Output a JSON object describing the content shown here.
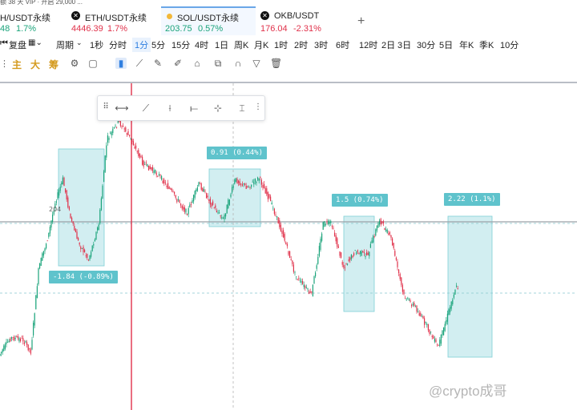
{
  "header": {
    "top_text": "额 38 天 VIP · 开启 29,000 ..."
  },
  "tabs": [
    {
      "name": "H/USDT永续",
      "price": "48",
      "change": "1.7%",
      "color": "#1aa37a",
      "has_close": false,
      "active": false
    },
    {
      "name": "ETH/USDT永续",
      "price": "4446.39",
      "change": "1.7%",
      "color": "#e0314a",
      "has_close": true,
      "active": false
    },
    {
      "name": "SOL/USDT永续",
      "price": "203.75",
      "change": "0.57%",
      "color": "#1aa37a",
      "has_close": false,
      "active": true
    },
    {
      "name": "OKB/USDT",
      "price": "176.04",
      "change": "-2.31%",
      "color": "#e0314a",
      "has_close": true,
      "active": false
    }
  ],
  "add_tab_label": "+",
  "toolbar": {
    "replay": "复盘",
    "period": "周期",
    "intervals": [
      "1秒",
      "分时",
      "1分",
      "5分",
      "15分",
      "4时",
      "1日",
      "周K",
      "月K",
      "1时",
      "2时",
      "3时",
      "6时",
      "12时",
      "2日",
      "3日",
      "30分",
      "5日",
      "年K",
      "季K",
      "10分"
    ],
    "selected_interval": "1分",
    "indicators": [
      "主",
      "大",
      "筹"
    ]
  },
  "chart_data": {
    "type": "candlestick",
    "symbol": "SOL/USDT永续",
    "price_levels_visible": [
      "204"
    ],
    "range_measurements": [
      {
        "label": "-1.84 (-0.89%)"
      },
      {
        "label": "0.91 (0.44%)"
      },
      {
        "label": "1.5 (0.74%)"
      },
      {
        "label": "2.22 (1.1%)"
      }
    ]
  },
  "watermark": "@crypto成哥",
  "accent_color": "#2f7fe0",
  "up_color": "#1aa37a",
  "down_color": "#e0314a"
}
